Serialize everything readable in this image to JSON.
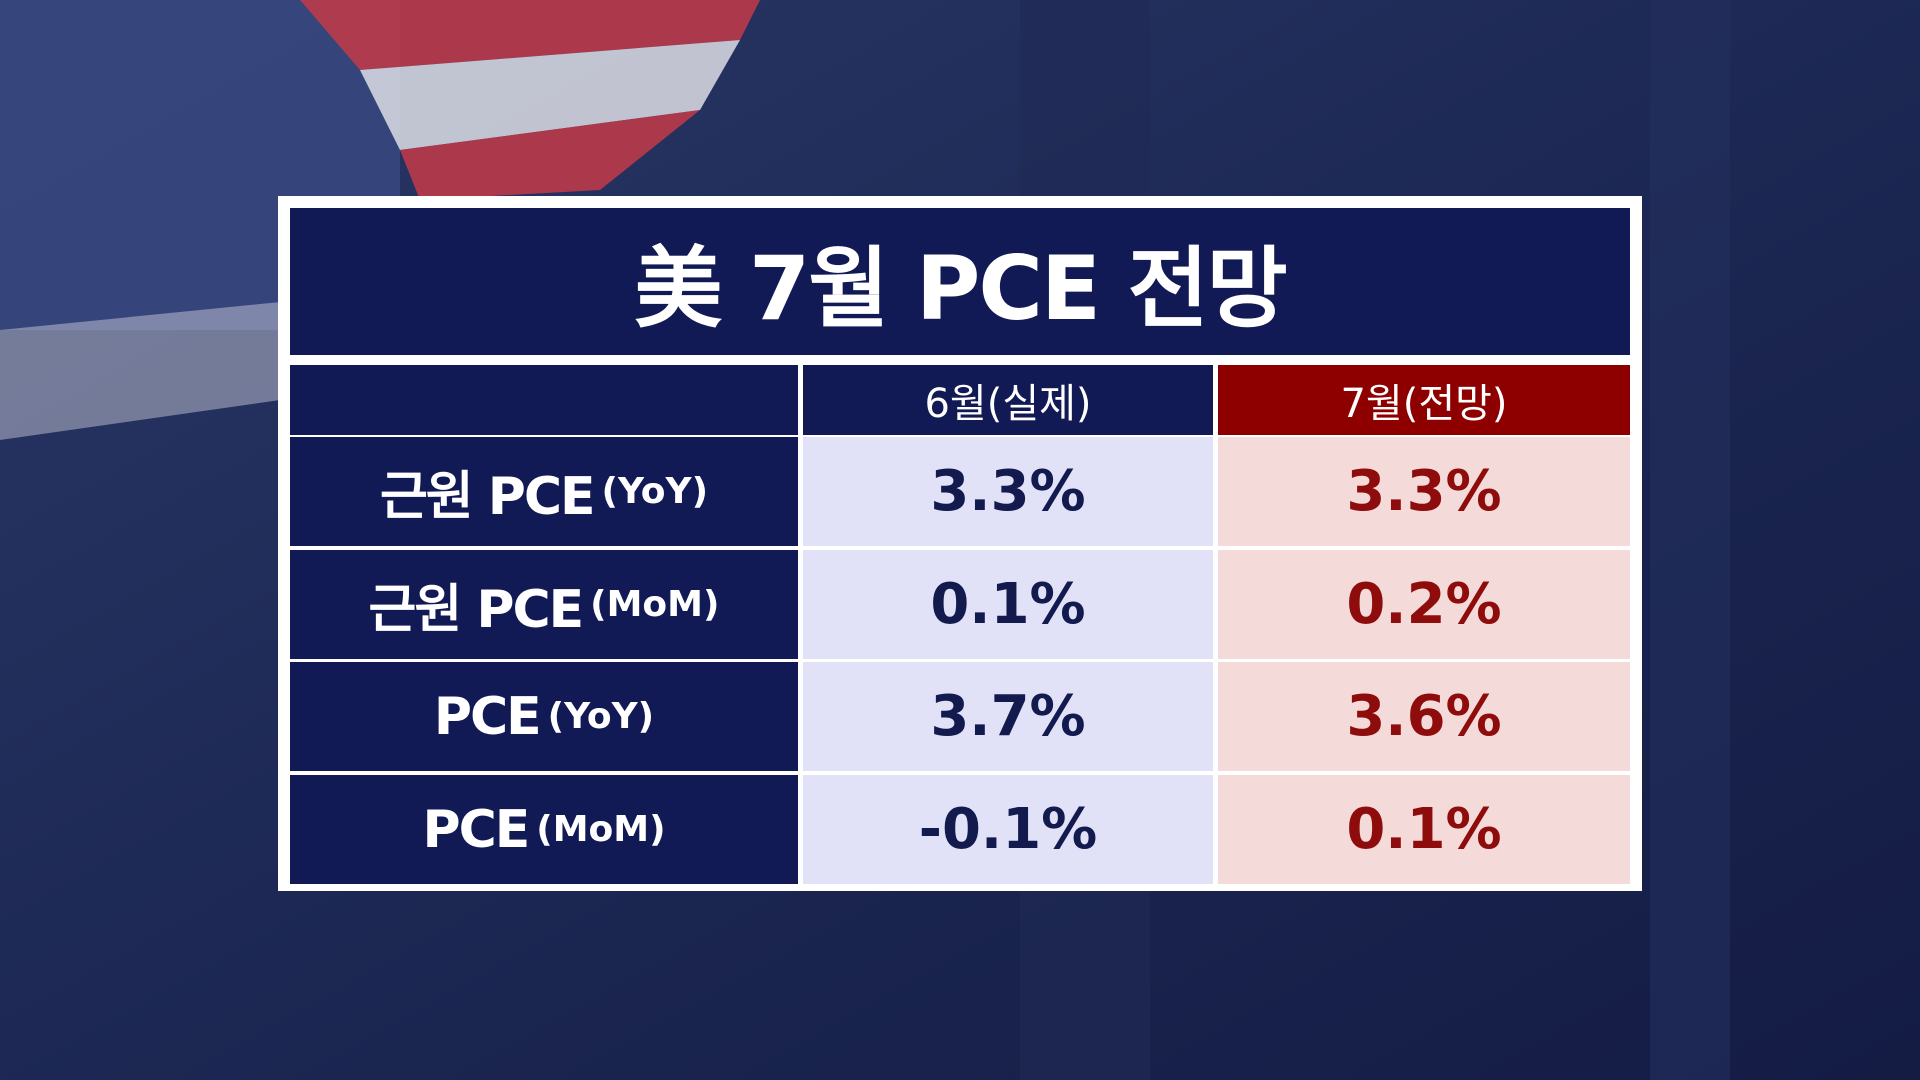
{
  "header": {
    "title": "美 7월 PCE 전망"
  },
  "table": {
    "columns": [
      "6월(실제)",
      "7월(전망)"
    ],
    "rows": [
      {
        "label": "근원 PCE",
        "sub": "(YoY)",
        "values": [
          "3.3%",
          "3.3%"
        ]
      },
      {
        "label": "근원 PCE",
        "sub": "(MoM)",
        "values": [
          "0.1%",
          "0.2%"
        ]
      },
      {
        "label": "PCE",
        "sub": "(YoY)",
        "values": [
          "3.7%",
          "3.6%"
        ]
      },
      {
        "label": "PCE",
        "sub": "(MoM)",
        "values": [
          "-0.1%",
          "0.1%"
        ]
      }
    ]
  }
}
